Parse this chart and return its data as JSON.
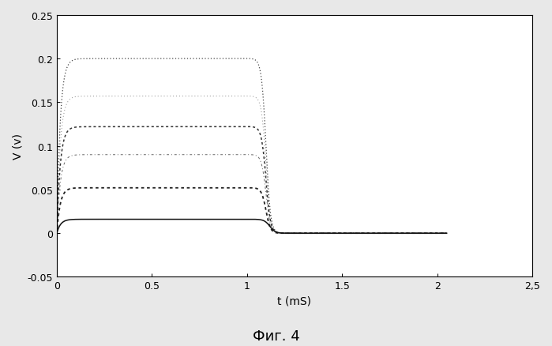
{
  "title": "Фиг. 4",
  "xlabel": "t (mS)",
  "ylabel": "V (v)",
  "xlim": [
    0,
    2.5
  ],
  "ylim": [
    -0.05,
    0.25
  ],
  "xticks": [
    0,
    0.5,
    1.0,
    1.5,
    2.0,
    2.5
  ],
  "xtick_labels": [
    "0",
    "0.5",
    "1",
    "1.5",
    "2",
    "2,5"
  ],
  "yticks": [
    -0.05,
    0,
    0.05,
    0.1,
    0.15,
    0.2,
    0.25
  ],
  "ytick_labels": [
    "-0.05",
    "0",
    "0.05",
    "0.1",
    "0.15",
    "0.2",
    "0.25"
  ],
  "curves": [
    {
      "peak": 0.2,
      "plateau_end": 1.1,
      "tau_rise": 0.018,
      "tau_decay": 0.38,
      "drop_sharpness": 0.012,
      "style": ":",
      "color": "#444444",
      "lw": 0.9,
      "dashes": [
        1,
        2
      ]
    },
    {
      "peak": 0.157,
      "plateau_end": 1.1,
      "tau_rise": 0.018,
      "tau_decay": 0.4,
      "drop_sharpness": 0.012,
      "style": ":",
      "color": "#888888",
      "lw": 0.7,
      "dashes": [
        1,
        3
      ]
    },
    {
      "peak": 0.122,
      "plateau_end": 1.1,
      "tau_rise": 0.018,
      "tau_decay": 0.42,
      "drop_sharpness": 0.012,
      "style": ":",
      "color": "#333333",
      "lw": 1.1,
      "dashes": [
        2,
        2
      ]
    },
    {
      "peak": 0.09,
      "plateau_end": 1.1,
      "tau_rise": 0.018,
      "tau_decay": 0.44,
      "drop_sharpness": 0.012,
      "style": "-.",
      "color": "#666666",
      "lw": 0.7,
      "dashes": [
        3,
        3,
        1,
        3
      ]
    },
    {
      "peak": 0.052,
      "plateau_end": 1.1,
      "tau_rise": 0.018,
      "tau_decay": 0.46,
      "drop_sharpness": 0.012,
      "style": ":",
      "color": "#222222",
      "lw": 1.3,
      "dashes": [
        2,
        2
      ]
    },
    {
      "peak": 0.016,
      "plateau_end": 1.12,
      "tau_rise": 0.02,
      "tau_decay": 0.5,
      "drop_sharpness": 0.015,
      "style": "-",
      "color": "#111111",
      "lw": 1.1,
      "dashes": []
    }
  ],
  "background_color": "#ffffff",
  "figure_background": "#e8e8e8"
}
